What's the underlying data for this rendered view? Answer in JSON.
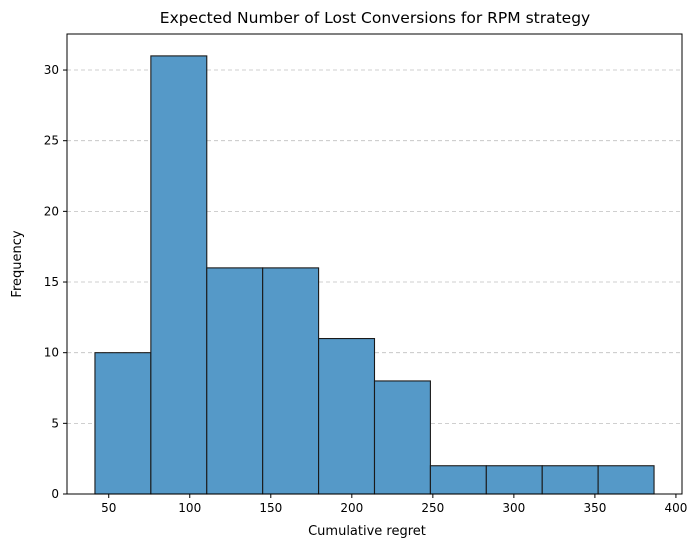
{
  "chart_data": {
    "type": "bar",
    "subtype": "histogram",
    "title": "Expected Number of Lost Conversions for RPM strategy",
    "xlabel": "Cumulative regret",
    "ylabel": "Frequency",
    "bin_edges": [
      41.5,
      76.0,
      110.5,
      145.0,
      179.5,
      214.0,
      248.5,
      283.0,
      317.5,
      352.0,
      386.5
    ],
    "values": [
      10,
      31,
      16,
      16,
      11,
      8,
      2,
      2,
      2,
      2
    ],
    "xlim": [
      24.25,
      403.75
    ],
    "ylim": [
      0,
      32.55
    ],
    "xticks": [
      50,
      100,
      150,
      200,
      250,
      300,
      350,
      400
    ],
    "yticks": [
      0,
      5,
      10,
      15,
      20,
      25,
      30
    ],
    "grid": "y-dashed",
    "bar_color": "#5599c8",
    "edge_color": "#1a1a1a"
  }
}
